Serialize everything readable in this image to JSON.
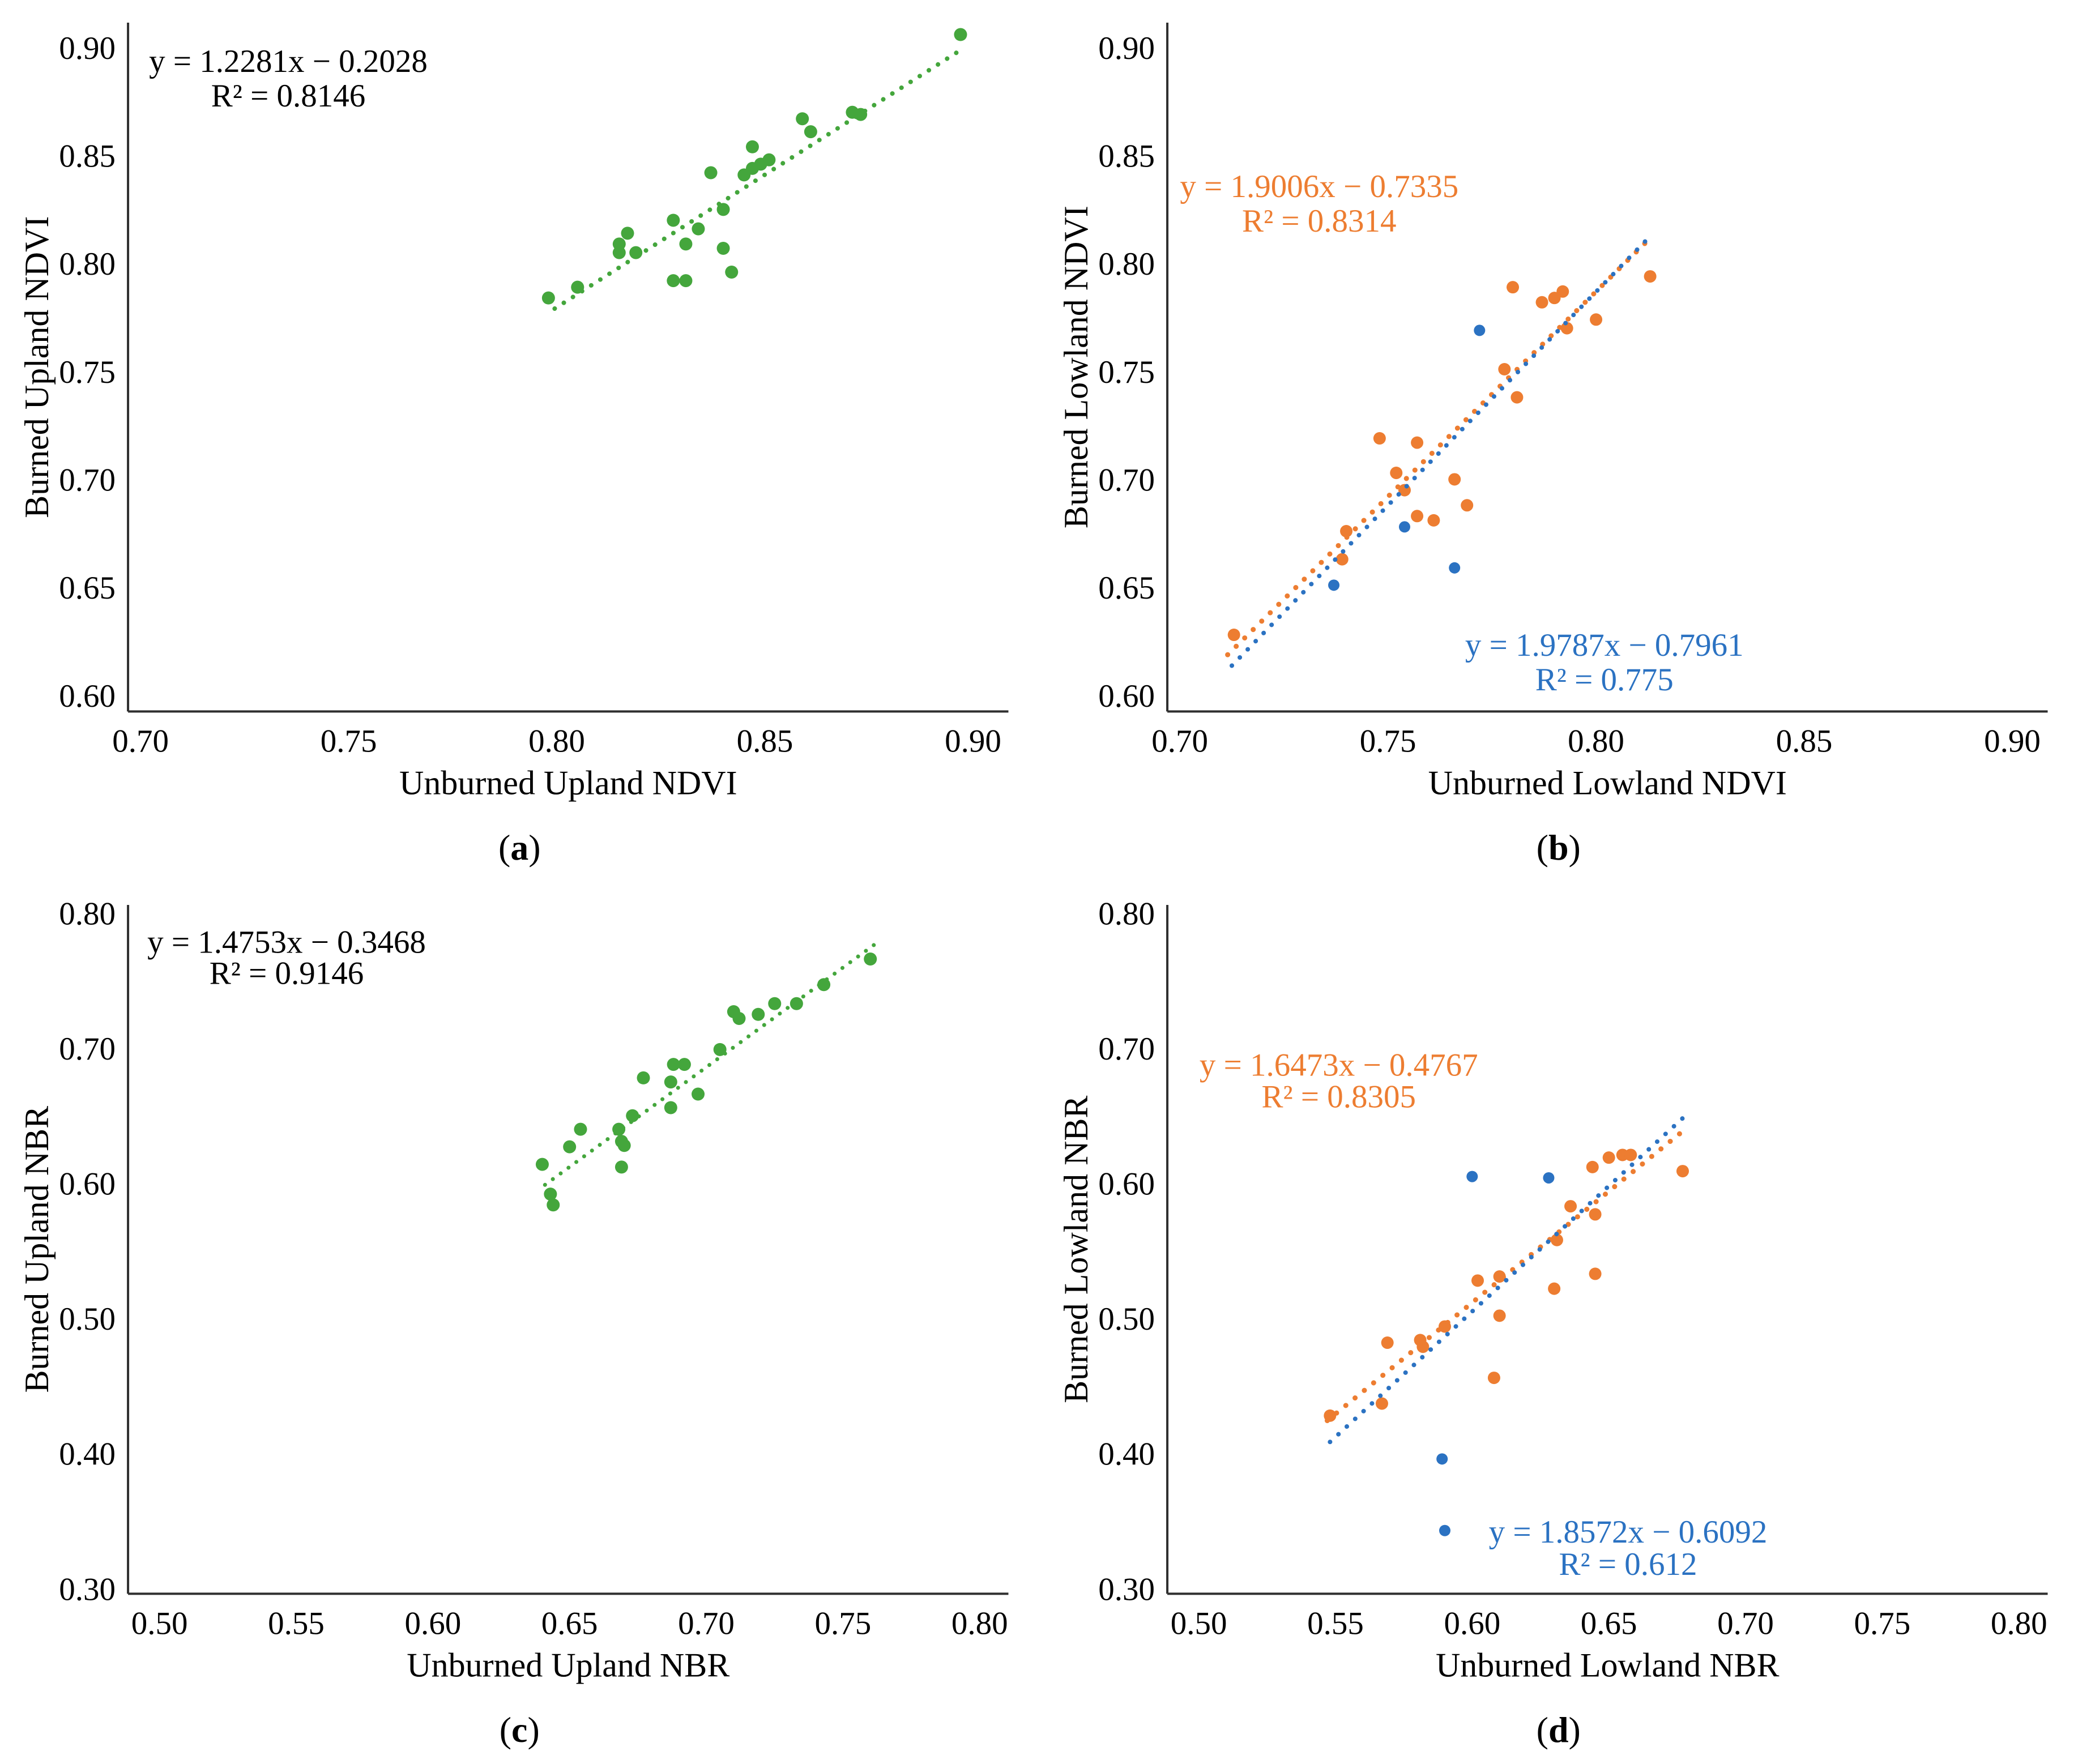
{
  "palette": {
    "green": "#44a63c",
    "orange": "#ed7d31",
    "blue": "#2b72c2",
    "axis": "#2f2f2f",
    "text": "#000000",
    "background": "#ffffff"
  },
  "chart_data": [
    {
      "panel": "a",
      "type": "scatter",
      "caption": {
        "open": "(",
        "letter": "a",
        "close": ")"
      },
      "xlabel": "Unburned Upland NDVI",
      "ylabel": "Burned Upland NDVI",
      "xlim": [
        0.697,
        0.9085
      ],
      "ylim": [
        0.5925,
        0.9115
      ],
      "xticks": [
        0.7,
        0.75,
        0.8,
        0.85,
        0.9
      ],
      "yticks": [
        0.6,
        0.65,
        0.7,
        0.75,
        0.8,
        0.85,
        0.9
      ],
      "grid": false,
      "legend": "none",
      "series": [
        {
          "color": "#44a63c",
          "marker_r": 11.5,
          "points": [
            [
              0.798,
              0.784
            ],
            [
              0.805,
              0.789
            ],
            [
              0.815,
              0.805
            ],
            [
              0.815,
              0.809
            ],
            [
              0.817,
              0.814
            ],
            [
              0.819,
              0.805
            ],
            [
              0.828,
              0.82
            ],
            [
              0.828,
              0.792
            ],
            [
              0.831,
              0.792
            ],
            [
              0.831,
              0.809
            ],
            [
              0.834,
              0.816
            ],
            [
              0.837,
              0.842
            ],
            [
              0.84,
              0.825
            ],
            [
              0.84,
              0.807
            ],
            [
              0.842,
              0.796
            ],
            [
              0.845,
              0.841
            ],
            [
              0.847,
              0.854
            ],
            [
              0.847,
              0.844
            ],
            [
              0.849,
              0.846
            ],
            [
              0.851,
              0.848
            ],
            [
              0.859,
              0.867
            ],
            [
              0.861,
              0.861
            ],
            [
              0.871,
              0.87
            ],
            [
              0.873,
              0.869
            ],
            [
              0.897,
              0.906
            ]
          ],
          "trend": {
            "slope": 1.2281,
            "intercept": -0.2028,
            "domain": [
              0.7995,
              0.898
            ],
            "dot": 8,
            "gap": 19
          },
          "equation": {
            "line1": "y = 1.2281x − 0.2028",
            "line2": "R² = 0.8146",
            "x": 0.7355,
            "y1": 0.894,
            "y2": 0.878,
            "color": "#000000"
          }
        }
      ]
    },
    {
      "panel": "b",
      "type": "scatter",
      "caption": {
        "open": "(",
        "letter": "b",
        "close": ")"
      },
      "xlabel": "Unburned Lowland NDVI",
      "ylabel": "Burned Lowland NDVI",
      "xlim": [
        0.697,
        0.9085
      ],
      "ylim": [
        0.5925,
        0.9115
      ],
      "xticks": [
        0.7,
        0.75,
        0.8,
        0.85,
        0.9
      ],
      "yticks": [
        0.6,
        0.65,
        0.7,
        0.75,
        0.8,
        0.85,
        0.9
      ],
      "grid": false,
      "legend": "none",
      "series": [
        {
          "color": "#ed7d31",
          "marker_r": 11,
          "points": [
            [
              0.713,
              0.628
            ],
            [
              0.739,
              0.663
            ],
            [
              0.74,
              0.676
            ],
            [
              0.748,
              0.719
            ],
            [
              0.752,
              0.703
            ],
            [
              0.754,
              0.695
            ],
            [
              0.757,
              0.717
            ],
            [
              0.757,
              0.683
            ],
            [
              0.761,
              0.681
            ],
            [
              0.766,
              0.7
            ],
            [
              0.769,
              0.688
            ],
            [
              0.778,
              0.751
            ],
            [
              0.781,
              0.738
            ],
            [
              0.78,
              0.789
            ],
            [
              0.787,
              0.782
            ],
            [
              0.79,
              0.784
            ],
            [
              0.792,
              0.787
            ],
            [
              0.793,
              0.77
            ],
            [
              0.8,
              0.774
            ],
            [
              0.813,
              0.794
            ]
          ],
          "trend": {
            "slope": 1.9006,
            "intercept": -0.7335,
            "domain": [
              0.7115,
              0.8125
            ],
            "dot": 9,
            "gap": 21
          },
          "equation": {
            "line1": "y = 1.9006x − 0.7335",
            "line2": "R² = 0.8314",
            "x": 0.7335,
            "y1": 0.836,
            "y2": 0.82,
            "color": "#ed7d31"
          }
        },
        {
          "color": "#2b72c2",
          "marker_r": 10,
          "points": [
            [
              0.737,
              0.651
            ],
            [
              0.754,
              0.678
            ],
            [
              0.766,
              0.659
            ],
            [
              0.772,
              0.769
            ]
          ],
          "trend": {
            "slope": 1.9787,
            "intercept": -0.7961,
            "domain": [
              0.7125,
              0.8125
            ],
            "dot": 8,
            "gap": 20
          },
          "equation": {
            "line1": "y = 1.9787x − 0.7961",
            "line2": "R² = 0.775",
            "x": 0.802,
            "y1": 0.6235,
            "y2": 0.6075,
            "color": "#2b72c2"
          }
        }
      ]
    },
    {
      "panel": "c",
      "type": "scatter",
      "caption": {
        "open": "(",
        "letter": "c",
        "close": ")"
      },
      "xlabel": "Unburned Upland NBR",
      "ylabel": "Burned Upland NBR",
      "xlim": [
        0.4885,
        0.8105
      ],
      "ylim": [
        0.2962,
        0.806
      ],
      "xticks": [
        0.5,
        0.55,
        0.6,
        0.65,
        0.7,
        0.75,
        0.8
      ],
      "yticks": [
        0.3,
        0.4,
        0.5,
        0.6,
        0.7,
        0.8
      ],
      "grid": false,
      "legend": "none",
      "series": [
        {
          "color": "#44a63c",
          "marker_r": 11.5,
          "points": [
            [
              0.64,
              0.614
            ],
            [
              0.643,
              0.592
            ],
            [
              0.644,
              0.584
            ],
            [
              0.65,
              0.627
            ],
            [
              0.654,
              0.64
            ],
            [
              0.668,
              0.64
            ],
            [
              0.669,
              0.631
            ],
            [
              0.67,
              0.628
            ],
            [
              0.669,
              0.612
            ],
            [
              0.673,
              0.65
            ],
            [
              0.677,
              0.678
            ],
            [
              0.687,
              0.656
            ],
            [
              0.687,
              0.675
            ],
            [
              0.688,
              0.688
            ],
            [
              0.692,
              0.688
            ],
            [
              0.697,
              0.666
            ],
            [
              0.705,
              0.699
            ],
            [
              0.71,
              0.727
            ],
            [
              0.712,
              0.722
            ],
            [
              0.719,
              0.725
            ],
            [
              0.725,
              0.733
            ],
            [
              0.733,
              0.733
            ],
            [
              0.743,
              0.747
            ],
            [
              0.76,
              0.766
            ]
          ],
          "trend": {
            "slope": 1.4753,
            "intercept": -0.3468,
            "domain": [
              0.641,
              0.7625
            ],
            "dot": 7,
            "gap": 17
          },
          "equation": {
            "line1": "y = 1.4753x − 0.3468",
            "line2": "R² = 0.9146",
            "x": 0.5465,
            "y1": 0.779,
            "y2": 0.756,
            "color": "#000000"
          }
        }
      ]
    },
    {
      "panel": "d",
      "type": "scatter",
      "caption": {
        "open": "(",
        "letter": "d",
        "close": ")"
      },
      "xlabel": "Unburned Lowland NBR",
      "ylabel": "Burned Lowland NBR",
      "xlim": [
        0.4885,
        0.8105
      ],
      "ylim": [
        0.2962,
        0.806
      ],
      "xticks": [
        0.5,
        0.55,
        0.6,
        0.65,
        0.7,
        0.75,
        0.8
      ],
      "yticks": [
        0.3,
        0.4,
        0.5,
        0.6,
        0.7,
        0.8
      ],
      "grid": false,
      "legend": "none",
      "series": [
        {
          "color": "#ed7d31",
          "marker_r": 11,
          "points": [
            [
              0.548,
              0.428
            ],
            [
              0.567,
              0.437
            ],
            [
              0.569,
              0.482
            ],
            [
              0.581,
              0.484
            ],
            [
              0.582,
              0.479
            ],
            [
              0.59,
              0.494
            ],
            [
              0.602,
              0.528
            ],
            [
              0.608,
              0.456
            ],
            [
              0.61,
              0.502
            ],
            [
              0.61,
              0.531
            ],
            [
              0.63,
              0.522
            ],
            [
              0.631,
              0.558
            ],
            [
              0.636,
              0.583
            ],
            [
              0.645,
              0.533
            ],
            [
              0.645,
              0.577
            ],
            [
              0.644,
              0.612
            ],
            [
              0.65,
              0.619
            ],
            [
              0.655,
              0.621
            ],
            [
              0.658,
              0.621
            ],
            [
              0.677,
              0.609
            ]
          ],
          "trend": {
            "slope": 1.6473,
            "intercept": -0.4767,
            "domain": [
              0.547,
              0.6775
            ],
            "dot": 9,
            "gap": 21
          },
          "equation": {
            "line1": "y = 1.6473x − 0.4767",
            "line2": "R² = 0.8305",
            "x": 0.5512,
            "y1": 0.688,
            "y2": 0.6645,
            "color": "#ed7d31"
          }
        },
        {
          "color": "#2b72c2",
          "marker_r": 10,
          "points": [
            [
              0.589,
              0.396
            ],
            [
              0.59,
              0.343
            ],
            [
              0.6,
              0.605
            ],
            [
              0.628,
              0.604
            ]
          ],
          "trend": {
            "slope": 1.8572,
            "intercept": -0.6092,
            "domain": [
              0.548,
              0.678
            ],
            "dot": 8,
            "gap": 20
          },
          "equation": {
            "line1": "y = 1.8572x − 0.6092",
            "line2": "R² = 0.612",
            "x": 0.657,
            "y1": 0.3425,
            "y2": 0.3185,
            "color": "#2b72c2"
          }
        }
      ]
    }
  ]
}
